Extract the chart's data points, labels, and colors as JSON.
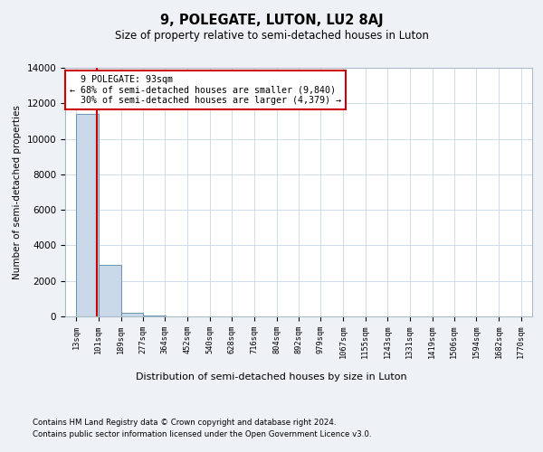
{
  "title": "9, POLEGATE, LUTON, LU2 8AJ",
  "subtitle": "Size of property relative to semi-detached houses in Luton",
  "xlabel": "Distribution of semi-detached houses by size in Luton",
  "ylabel": "Number of semi-detached properties",
  "footer_line1": "Contains HM Land Registry data © Crown copyright and database right 2024.",
  "footer_line2": "Contains public sector information licensed under the Open Government Licence v3.0.",
  "property_size": 93,
  "property_label": "9 POLEGATE: 93sqm",
  "pct_smaller": 68,
  "count_smaller": 9840,
  "pct_larger": 30,
  "count_larger": 4379,
  "bar_edges": [
    13,
    101,
    189,
    277,
    364,
    452,
    540,
    628,
    716,
    804,
    892,
    979,
    1067,
    1155,
    1243,
    1331,
    1419,
    1506,
    1594,
    1682,
    1770
  ],
  "bar_heights": [
    11400,
    2900,
    200,
    50,
    20,
    10,
    5,
    3,
    2,
    1,
    1,
    1,
    1,
    1,
    0,
    0,
    0,
    0,
    0,
    0
  ],
  "bar_color": "#c8d8e8",
  "bar_edge_color": "#5a8aaa",
  "line_color": "#cc0000",
  "ylim": [
    0,
    14000
  ],
  "background_color": "#eef2f6",
  "plot_background": "#ffffff",
  "tick_labels": [
    "13sqm",
    "101sqm",
    "189sqm",
    "277sqm",
    "364sqm",
    "452sqm",
    "540sqm",
    "628sqm",
    "716sqm",
    "804sqm",
    "892sqm",
    "979sqm",
    "1067sqm",
    "1155sqm",
    "1243sqm",
    "1331sqm",
    "1419sqm",
    "1506sqm",
    "1594sqm",
    "1682sqm",
    "1770sqm"
  ]
}
